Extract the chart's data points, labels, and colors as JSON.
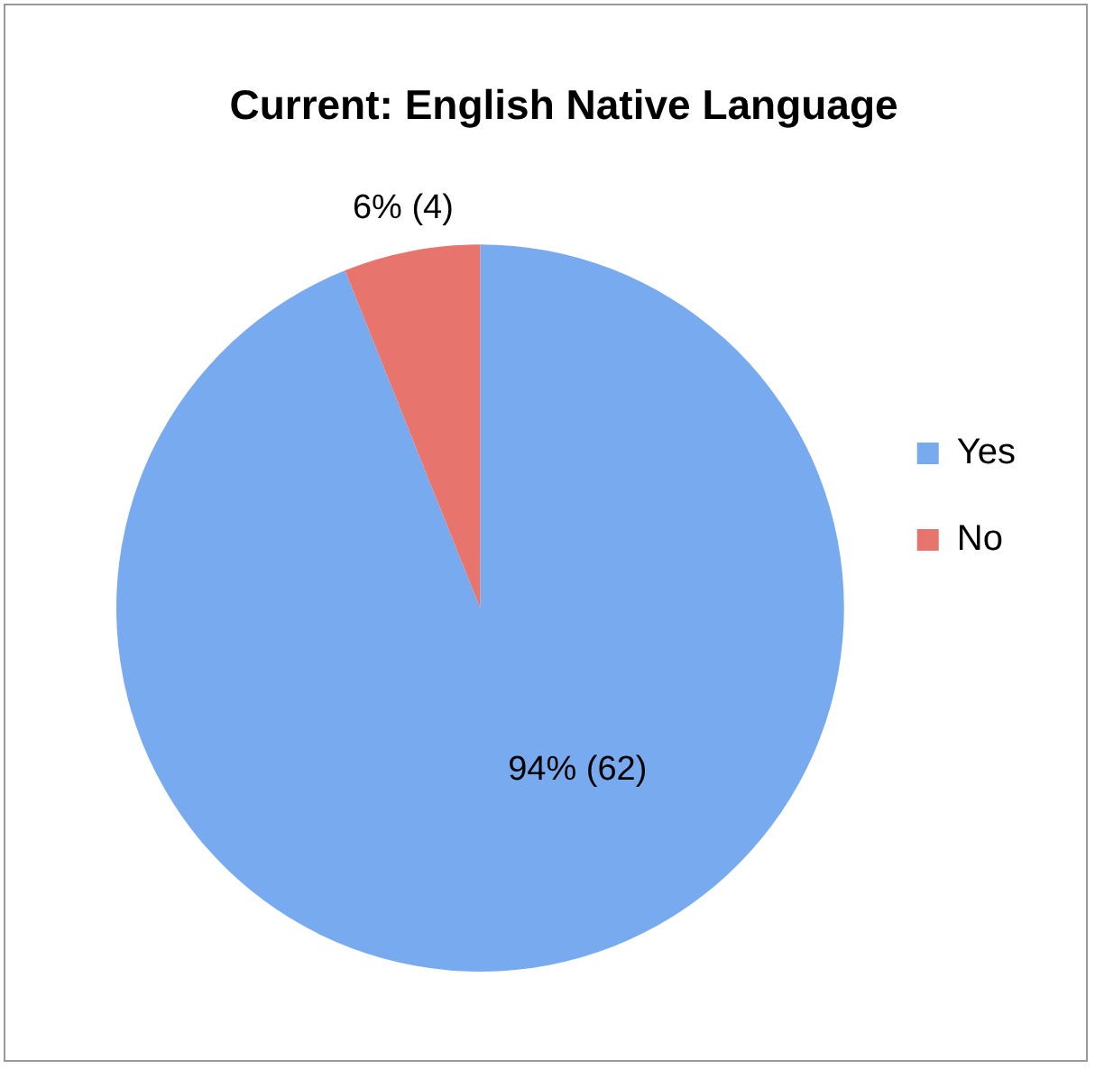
{
  "chart_data": {
    "type": "pie",
    "title": "Current: English Native Language",
    "categories": [
      "Yes",
      "No"
    ],
    "values": [
      62,
      4
    ],
    "colors": [
      "#78aaf0",
      "#e8746e"
    ],
    "value_labels": [
      "94% (62)",
      "6% (4)"
    ],
    "legend": "right"
  }
}
